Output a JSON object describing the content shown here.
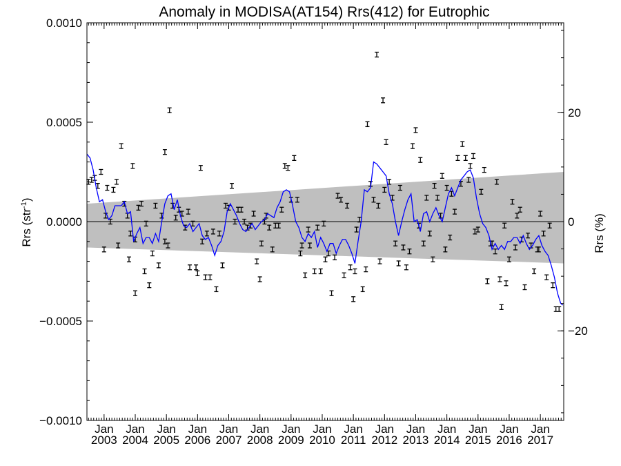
{
  "chart_data": {
    "type": "scatter",
    "title": "Anomaly in MODISA(AT154) Rrs(412) for Eutrophic",
    "ylabel": {
      "base": "Rrs (str",
      "sup": "-1",
      "close": ")"
    },
    "y2label": "Rrs (%)",
    "xlim": [
      2002.45,
      2017.75
    ],
    "ylim": [
      -0.001,
      0.001
    ],
    "y2lim": [
      -36.4,
      36.4
    ],
    "y_ticks": [
      {
        "value": 0.001,
        "label": "0.0010"
      },
      {
        "value": 0.0005,
        "label": "0.0005"
      },
      {
        "value": 0.0,
        "label": "0.0000"
      },
      {
        "value": -0.0005,
        "label": "−0.0005"
      },
      {
        "value": -0.001,
        "label": "−0.0010"
      }
    ],
    "y2_ticks": [
      {
        "value": 20,
        "label": "20"
      },
      {
        "value": 0,
        "label": "0"
      },
      {
        "value": -20,
        "label": "−20"
      }
    ],
    "x_ticks": [
      {
        "value": 2003,
        "month": "Jan",
        "year": "2003"
      },
      {
        "value": 2004,
        "month": "Jan",
        "year": "2004"
      },
      {
        "value": 2005,
        "month": "Jan",
        "year": "2005"
      },
      {
        "value": 2006,
        "month": "Jan",
        "year": "2006"
      },
      {
        "value": 2007,
        "month": "Jan",
        "year": "2007"
      },
      {
        "value": 2008,
        "month": "Jan",
        "year": "2008"
      },
      {
        "value": 2009,
        "month": "Jan",
        "year": "2009"
      },
      {
        "value": 2010,
        "month": "Jan",
        "year": "2010"
      },
      {
        "value": 2011,
        "month": "Jan",
        "year": "2011"
      },
      {
        "value": 2012,
        "month": "Jan",
        "year": "2012"
      },
      {
        "value": 2013,
        "month": "Jan",
        "year": "2013"
      },
      {
        "value": 2014,
        "month": "Jan",
        "year": "2014"
      },
      {
        "value": 2015,
        "month": "Jan",
        "year": "2015"
      },
      {
        "value": 2016,
        "month": "Jan",
        "year": "2016"
      },
      {
        "value": 2017,
        "month": "Jan",
        "year": "2017"
      }
    ],
    "band": {
      "x": [
        2002.45,
        2017.75
      ],
      "upper": [
        9e-05,
        0.00025
      ],
      "lower": [
        -0.00013,
        -0.00021
      ]
    },
    "zero_line": 0.0,
    "points": [
      [
        2002.5,
        0.0002
      ],
      [
        2002.6,
        0.00021
      ],
      [
        2002.7,
        0.00022
      ],
      [
        2002.8,
        0.00018
      ],
      [
        2002.9,
        0.00025
      ],
      [
        2003.0,
        -0.00014
      ],
      [
        2003.05,
        3e-05
      ],
      [
        2003.1,
        0.00017
      ],
      [
        2003.2,
        0.0
      ],
      [
        2003.3,
        0.00016
      ],
      [
        2003.4,
        0.0002
      ],
      [
        2003.45,
        -0.00012
      ],
      [
        2003.55,
        0.00038
      ],
      [
        2003.65,
        9e-05
      ],
      [
        2003.75,
        3e-05
      ],
      [
        2003.85,
        -6e-05
      ],
      [
        2003.92,
        0.00028
      ],
      [
        2004.0,
        -9e-05
      ],
      [
        2003.8,
        -0.00019
      ],
      [
        2004.0,
        -0.00036
      ],
      [
        2004.1,
        7e-05
      ],
      [
        2004.2,
        9e-05
      ],
      [
        2004.3,
        -0.00025
      ],
      [
        2004.35,
        -1e-05
      ],
      [
        2004.45,
        -0.00032
      ],
      [
        2004.55,
        -0.00016
      ],
      [
        2004.65,
        8e-05
      ],
      [
        2004.75,
        -0.00022
      ],
      [
        2004.85,
        3e-05
      ],
      [
        2004.95,
        0.00035
      ],
      [
        2004.95,
        -0.0001
      ],
      [
        2005.05,
        -0.00012
      ],
      [
        2005.1,
        0.00056
      ],
      [
        2005.2,
        8e-05
      ],
      [
        2005.3,
        2e-05
      ],
      [
        2005.4,
        6e-05
      ],
      [
        2005.5,
        4e-05
      ],
      [
        2005.6,
        -3e-05
      ],
      [
        2005.7,
        5e-05
      ],
      [
        2005.75,
        -0.00023
      ],
      [
        2005.85,
        -1e-05
      ],
      [
        2005.95,
        -0.00023
      ],
      [
        2006.0,
        -0.00026
      ],
      [
        2006.1,
        0.00027
      ],
      [
        2006.15,
        -0.0001
      ],
      [
        2006.25,
        -0.00028
      ],
      [
        2006.3,
        -6e-05
      ],
      [
        2006.4,
        -0.00028
      ],
      [
        2006.5,
        -5e-05
      ],
      [
        2006.6,
        -0.00034
      ],
      [
        2006.7,
        -6e-05
      ],
      [
        2006.8,
        -0.00022
      ],
      [
        2006.9,
        8e-05
      ],
      [
        2007.0,
        7e-05
      ],
      [
        2007.1,
        0.00018
      ],
      [
        2007.2,
        0.0
      ],
      [
        2007.3,
        6e-05
      ],
      [
        2007.4,
        6e-05
      ],
      [
        2007.5,
        0.0
      ],
      [
        2007.6,
        -3e-05
      ],
      [
        2007.7,
        -2e-05
      ],
      [
        2007.8,
        4e-05
      ],
      [
        2007.9,
        -0.0002
      ],
      [
        2008.0,
        -0.00029
      ],
      [
        2008.05,
        -0.00011
      ],
      [
        2008.15,
        0.0
      ],
      [
        2008.2,
        3e-05
      ],
      [
        2008.3,
        -3e-05
      ],
      [
        2008.4,
        -0.00014
      ],
      [
        2008.5,
        -2e-05
      ],
      [
        2008.6,
        -2e-05
      ],
      [
        2008.7,
        6e-05
      ],
      [
        2008.8,
        0.00028
      ],
      [
        2008.9,
        0.00027
      ],
      [
        2009.0,
        0.00011
      ],
      [
        2009.1,
        0.00032
      ],
      [
        2009.2,
        0.00011
      ],
      [
        2009.3,
        -0.00016
      ],
      [
        2009.35,
        -0.00012
      ],
      [
        2009.45,
        -0.00027
      ],
      [
        2009.55,
        -4e-05
      ],
      [
        2009.6,
        -0.00012
      ],
      [
        2009.75,
        -0.00025
      ],
      [
        2009.85,
        -3e-05
      ],
      [
        2009.95,
        -0.00025
      ],
      [
        2010.05,
        -1e-05
      ],
      [
        2010.1,
        -0.00019
      ],
      [
        2010.2,
        -0.00016
      ],
      [
        2010.3,
        -0.00036
      ],
      [
        2010.4,
        -0.00018
      ],
      [
        2010.5,
        0.00013
      ],
      [
        2010.6,
        0.00011
      ],
      [
        2010.7,
        -0.00027
      ],
      [
        2010.8,
        8e-05
      ],
      [
        2010.9,
        -0.00023
      ],
      [
        2011.0,
        -0.00039
      ],
      [
        2011.05,
        -0.00025
      ],
      [
        2011.1,
        -4e-05
      ],
      [
        2011.2,
        1e-05
      ],
      [
        2011.3,
        -0.00034
      ],
      [
        2011.4,
        -0.00024
      ],
      [
        2011.45,
        0.00049
      ],
      [
        2011.55,
        0.00019
      ],
      [
        2011.65,
        0.00011
      ],
      [
        2011.75,
        0.00084
      ],
      [
        2011.8,
        8e-05
      ],
      [
        2011.85,
        -0.0002
      ],
      [
        2011.95,
        0.00061
      ],
      [
        2012.0,
        0.00016
      ],
      [
        2012.05,
        0.0004
      ],
      [
        2012.15,
        0.0002
      ],
      [
        2012.25,
        0.00012
      ],
      [
        2012.35,
        -0.00011
      ],
      [
        2012.45,
        -0.00021
      ],
      [
        2012.5,
        0.00017
      ],
      [
        2012.6,
        -0.00013
      ],
      [
        2012.7,
        -0.00023
      ],
      [
        2012.8,
        -0.00015
      ],
      [
        2012.9,
        0.00038
      ],
      [
        2013.0,
        0.00046
      ],
      [
        2013.1,
        -2e-05
      ],
      [
        2013.15,
        0.00031
      ],
      [
        2013.25,
        -0.00011
      ],
      [
        2013.35,
        0.00012
      ],
      [
        2013.45,
        -6e-05
      ],
      [
        2013.55,
        -0.00019
      ],
      [
        2013.6,
        0.00018
      ],
      [
        2013.7,
        0.00012
      ],
      [
        2013.8,
        3e-05
      ],
      [
        2013.85,
        0.00023
      ],
      [
        2013.95,
        -0.00014
      ],
      [
        2014.0,
        0.00017
      ],
      [
        2014.1,
        -8e-05
      ],
      [
        2014.15,
        0.00014
      ],
      [
        2014.25,
        5e-05
      ],
      [
        2014.35,
        0.00032
      ],
      [
        2014.45,
        0.00019
      ],
      [
        2014.5,
        0.00039
      ],
      [
        2014.6,
        0.00032
      ],
      [
        2014.7,
        0.00021
      ],
      [
        2014.75,
        0.00028
      ],
      [
        2014.85,
        0.00033
      ],
      [
        2014.9,
        -5e-05
      ],
      [
        2015.0,
        -4e-05
      ],
      [
        2015.1,
        0.00015
      ],
      [
        2015.2,
        0.00026
      ],
      [
        2015.3,
        -0.0003
      ],
      [
        2015.4,
        -0.00011
      ],
      [
        2015.45,
        -0.00011
      ],
      [
        2015.55,
        -0.00015
      ],
      [
        2015.6,
        0.0002
      ],
      [
        2015.7,
        -0.00029
      ],
      [
        2015.75,
        -0.00043
      ],
      [
        2015.85,
        -2e-05
      ],
      [
        2015.9,
        -0.00031
      ],
      [
        2016.0,
        -0.00019
      ],
      [
        2016.1,
        0.0001
      ],
      [
        2016.2,
        -0.00013
      ],
      [
        2016.25,
        3e-05
      ],
      [
        2016.35,
        6e-05
      ],
      [
        2016.4,
        -9e-05
      ],
      [
        2016.5,
        -0.00033
      ],
      [
        2016.6,
        -7e-05
      ],
      [
        2016.7,
        -0.00012
      ],
      [
        2016.8,
        -0.00025
      ],
      [
        2016.9,
        -0.00014
      ],
      [
        2016.95,
        -0.00014
      ],
      [
        2017.0,
        4e-05
      ],
      [
        2017.1,
        -6e-05
      ],
      [
        2017.2,
        -0.00028
      ],
      [
        2017.3,
        -2e-05
      ],
      [
        2017.4,
        -0.00032
      ],
      [
        2017.5,
        -0.00044
      ],
      [
        2017.6,
        -0.00044
      ]
    ],
    "line": [
      [
        2002.45,
        0.00034
      ],
      [
        2002.55,
        0.00032
      ],
      [
        2002.65,
        0.00026
      ],
      [
        2002.75,
        0.00017
      ],
      [
        2002.85,
        0.0001
      ],
      [
        2002.95,
        0.00011
      ],
      [
        2003.05,
        5e-05
      ],
      [
        2003.15,
        1e-05
      ],
      [
        2003.25,
        3e-05
      ],
      [
        2003.35,
        8e-05
      ],
      [
        2003.45,
        8e-05
      ],
      [
        2003.55,
        8e-05
      ],
      [
        2003.65,
        0.0001
      ],
      [
        2003.75,
        4e-05
      ],
      [
        2003.85,
        5e-05
      ],
      [
        2003.95,
        -0.0001
      ],
      [
        2004.05,
        -6e-05
      ],
      [
        2004.15,
        -3e-05
      ],
      [
        2004.25,
        -0.00011
      ],
      [
        2004.35,
        -8e-05
      ],
      [
        2004.45,
        -8e-05
      ],
      [
        2004.55,
        -0.00011
      ],
      [
        2004.65,
        -6e-05
      ],
      [
        2004.75,
        -0.0001
      ],
      [
        2004.85,
        0.0
      ],
      [
        2004.95,
        9e-05
      ],
      [
        2005.05,
        0.00013
      ],
      [
        2005.15,
        0.00014
      ],
      [
        2005.25,
        6e-05
      ],
      [
        2005.35,
        0.00011
      ],
      [
        2005.45,
        3e-05
      ],
      [
        2005.55,
        -2e-05
      ],
      [
        2005.65,
        -3e-05
      ],
      [
        2005.75,
        -1e-05
      ],
      [
        2005.85,
        -5e-05
      ],
      [
        2005.95,
        -3e-05
      ],
      [
        2006.05,
        -1e-05
      ],
      [
        2006.15,
        -7e-05
      ],
      [
        2006.25,
        -9e-05
      ],
      [
        2006.35,
        -8e-05
      ],
      [
        2006.45,
        -0.00012
      ],
      [
        2006.55,
        -0.00017
      ],
      [
        2006.65,
        -0.00012
      ],
      [
        2006.75,
        -0.0001
      ],
      [
        2006.85,
        -5e-05
      ],
      [
        2006.95,
        5e-05
      ],
      [
        2007.05,
        9e-05
      ],
      [
        2007.15,
        6e-05
      ],
      [
        2007.25,
        3e-05
      ],
      [
        2007.35,
        -1e-05
      ],
      [
        2007.45,
        -4e-05
      ],
      [
        2007.55,
        -5e-05
      ],
      [
        2007.65,
        -3e-05
      ],
      [
        2007.75,
        -1e-05
      ],
      [
        2007.85,
        -4e-05
      ],
      [
        2007.95,
        -2e-05
      ],
      [
        2008.05,
        0.0
      ],
      [
        2008.15,
        1e-05
      ],
      [
        2008.25,
        4e-05
      ],
      [
        2008.35,
        3e-05
      ],
      [
        2008.45,
        2e-05
      ],
      [
        2008.55,
        7e-05
      ],
      [
        2008.65,
        0.0001
      ],
      [
        2008.75,
        0.00015
      ],
      [
        2008.85,
        0.00016
      ],
      [
        2008.95,
        0.00015
      ],
      [
        2009.05,
        8e-05
      ],
      [
        2009.15,
        0.0
      ],
      [
        2009.25,
        -3e-05
      ],
      [
        2009.35,
        -8e-05
      ],
      [
        2009.45,
        -0.0001
      ],
      [
        2009.55,
        -6e-05
      ],
      [
        2009.65,
        -8e-05
      ],
      [
        2009.75,
        -5e-05
      ],
      [
        2009.85,
        -0.00013
      ],
      [
        2009.95,
        -8e-05
      ],
      [
        2010.05,
        -0.00011
      ],
      [
        2010.15,
        -0.00015
      ],
      [
        2010.25,
        -0.00011
      ],
      [
        2010.35,
        -0.00011
      ],
      [
        2010.45,
        -0.00016
      ],
      [
        2010.55,
        -0.00012
      ],
      [
        2010.65,
        -9e-05
      ],
      [
        2010.75,
        -9e-05
      ],
      [
        2010.85,
        -0.00012
      ],
      [
        2010.95,
        -0.00016
      ],
      [
        2011.05,
        -0.00021
      ],
      [
        2011.15,
        -0.0001
      ],
      [
        2011.25,
        0.0
      ],
      [
        2011.35,
        0.00016
      ],
      [
        2011.45,
        0.00015
      ],
      [
        2011.55,
        0.00017
      ],
      [
        2011.65,
        0.0003
      ],
      [
        2011.75,
        0.00029
      ],
      [
        2011.85,
        0.00027
      ],
      [
        2011.95,
        0.00025
      ],
      [
        2012.05,
        0.00023
      ],
      [
        2012.15,
        0.00014
      ],
      [
        2012.25,
        9e-05
      ],
      [
        2012.35,
        0.0
      ],
      [
        2012.45,
        -7e-05
      ],
      [
        2012.55,
        0.0
      ],
      [
        2012.65,
        6e-05
      ],
      [
        2012.75,
        0.00011
      ],
      [
        2012.85,
        0.00014
      ],
      [
        2012.95,
        0.0
      ],
      [
        2013.05,
        1e-05
      ],
      [
        2013.15,
        -5e-05
      ],
      [
        2013.25,
        4e-05
      ],
      [
        2013.35,
        5e-05
      ],
      [
        2013.45,
        0.0
      ],
      [
        2013.55,
        4e-05
      ],
      [
        2013.65,
        7e-05
      ],
      [
        2013.75,
        3e-05
      ],
      [
        2013.85,
        0.0
      ],
      [
        2013.95,
        7e-05
      ],
      [
        2014.05,
        0.00014
      ],
      [
        2014.15,
        0.00017
      ],
      [
        2014.25,
        0.00013
      ],
      [
        2014.35,
        0.00017
      ],
      [
        2014.45,
        0.00021
      ],
      [
        2014.55,
        0.00023
      ],
      [
        2014.65,
        0.00025
      ],
      [
        2014.75,
        0.00026
      ],
      [
        2014.85,
        0.00022
      ],
      [
        2014.95,
        0.00012
      ],
      [
        2015.05,
        4e-05
      ],
      [
        2015.15,
        -1e-05
      ],
      [
        2015.25,
        -3e-05
      ],
      [
        2015.35,
        -7e-05
      ],
      [
        2015.45,
        -0.00014
      ],
      [
        2015.55,
        -0.00011
      ],
      [
        2015.65,
        -0.00014
      ],
      [
        2015.75,
        -0.00012
      ],
      [
        2015.85,
        -0.00014
      ],
      [
        2015.95,
        -0.0001
      ],
      [
        2016.05,
        -0.0001
      ],
      [
        2016.15,
        -8e-05
      ],
      [
        2016.25,
        -8e-05
      ],
      [
        2016.35,
        -0.00011
      ],
      [
        2016.45,
        -7e-05
      ],
      [
        2016.55,
        -0.00011
      ],
      [
        2016.65,
        -0.00014
      ],
      [
        2016.75,
        -0.00012
      ],
      [
        2016.85,
        -9e-05
      ],
      [
        2016.95,
        -7e-05
      ],
      [
        2017.05,
        -0.00012
      ],
      [
        2017.15,
        -0.00015
      ],
      [
        2017.25,
        -0.00017
      ],
      [
        2017.35,
        -0.00022
      ],
      [
        2017.45,
        -0.00028
      ],
      [
        2017.55,
        -0.00036
      ],
      [
        2017.65,
        -0.00041
      ],
      [
        2017.72,
        -0.00042
      ]
    ],
    "colors": {
      "line": "#0000ff",
      "band": "#bfbfbf",
      "points": "#000000",
      "axis": "#000000"
    }
  }
}
